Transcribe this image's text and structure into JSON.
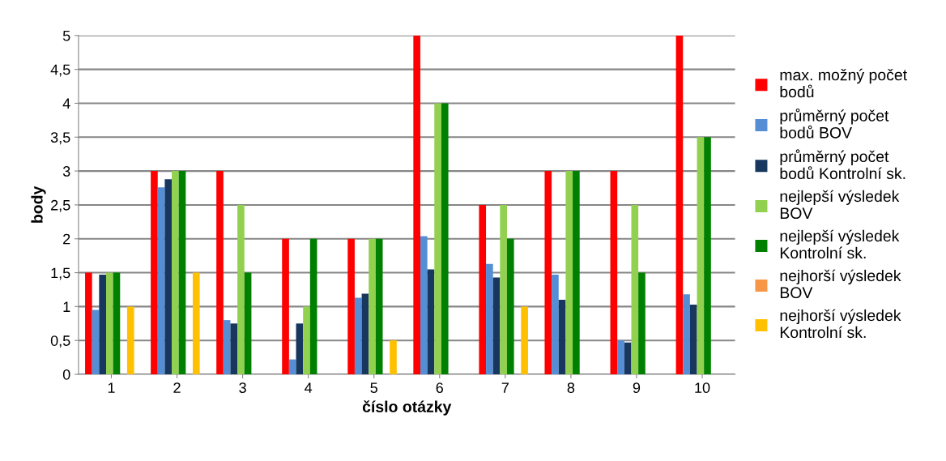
{
  "chart_data": {
    "type": "bar",
    "xlabel": "číslo otázky",
    "ylabel": "body",
    "categories": [
      "1",
      "2",
      "3",
      "4",
      "5",
      "6",
      "7",
      "8",
      "9",
      "10"
    ],
    "series": [
      {
        "name": "max. možný počet\nbodů",
        "color": "#ff0000",
        "values": [
          1.5,
          3,
          3,
          2,
          2,
          5,
          2.5,
          3,
          3,
          5
        ]
      },
      {
        "name": "průměrný počet\nbodů BOV",
        "color": "#558ed5",
        "values": [
          0.95,
          2.76,
          0.8,
          0.22,
          1.13,
          2.04,
          1.63,
          1.47,
          0.5,
          1.18
        ]
      },
      {
        "name": "průměrný počet\nbodů Kontrolní sk.",
        "color": "#17375e",
        "values": [
          1.47,
          2.88,
          0.75,
          0.75,
          1.19,
          1.55,
          1.43,
          1.1,
          0.47,
          1.03
        ]
      },
      {
        "name": "nejlepší výsledek\nBOV",
        "color": "#92d050",
        "values": [
          1.5,
          3,
          2.5,
          1,
          2,
          4,
          2.5,
          3,
          2.5,
          3.5
        ]
      },
      {
        "name": "nejlepší výsledek\nKontrolní sk.",
        "color": "#008000",
        "values": [
          1.5,
          3,
          1.5,
          2,
          2,
          4,
          2,
          3,
          1.5,
          3.5
        ]
      },
      {
        "name": "nejhorší výsledek\nBOV",
        "color": "#f79646",
        "values": [
          0,
          0,
          0,
          0,
          0,
          0,
          0,
          0,
          0,
          0
        ]
      },
      {
        "name": "nejhorší výsledek\nKontrolní sk.",
        "color": "#ffc000",
        "values": [
          1,
          1.5,
          0,
          0,
          0.5,
          0,
          1,
          0,
          0,
          0
        ]
      }
    ],
    "ylim": [
      0,
      5
    ],
    "yticks": [
      0,
      {
        "value": 0.5,
        "label": "0,5"
      },
      1,
      {
        "value": 1.5,
        "label": "1,5"
      },
      2,
      {
        "value": 2.5,
        "label": "2,5"
      },
      3,
      {
        "value": 3.5,
        "label": "3,5"
      },
      4,
      {
        "value": 4.5,
        "label": "4,5"
      },
      5
    ],
    "grid": "y",
    "legend": "right"
  }
}
